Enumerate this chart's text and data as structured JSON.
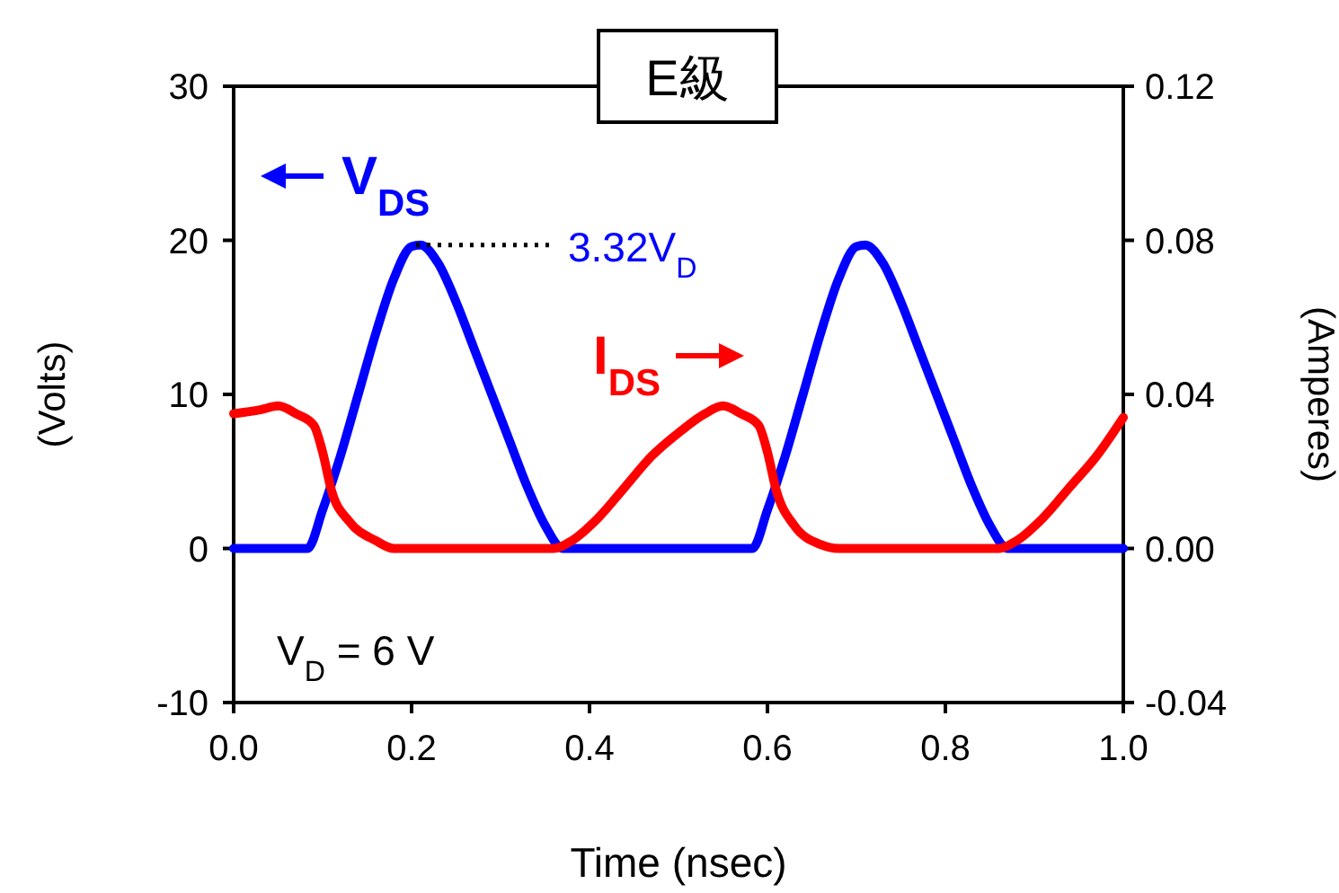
{
  "chart_data": {
    "type": "line",
    "title": "E級",
    "xlabel": "Time (nsec)",
    "ylabel": "(Volts)",
    "y2label": "(Amperes)",
    "xlim": [
      0,
      1
    ],
    "xticks": [
      {
        "value": 0,
        "label": "0.0"
      },
      {
        "value": 0.2,
        "label": "0.2"
      },
      {
        "value": 0.4,
        "label": "0.4"
      },
      {
        "value": 0.6,
        "label": "0.6"
      },
      {
        "value": 0.8,
        "label": "0.8"
      },
      {
        "value": 1,
        "label": "1.0"
      }
    ],
    "ylim": [
      -10,
      30
    ],
    "yticks": [
      -10,
      0,
      10,
      20,
      30
    ],
    "y2lim": [
      -0.04,
      0.12
    ],
    "y2ticks": [
      {
        "value": -0.04,
        "label": "-0.04"
      },
      {
        "value": 0,
        "label": "0.00"
      },
      {
        "value": 0.04,
        "label": "0.04"
      },
      {
        "value": 0.08,
        "label": "0.08"
      },
      {
        "value": 0.12,
        "label": "0.12"
      }
    ],
    "grid": false,
    "legend": "top left",
    "marker": "none",
    "line_style": "solid",
    "annotations": [
      {
        "text": "3.32V$_{D}$",
        "x": 0.205,
        "y": 19.7
      },
      "V$_{D}$ = 6 V"
    ],
    "series": [
      {
        "name": "V$_{DS}$",
        "color": "#0000ff",
        "x": [
          0,
          0.04,
          0.083,
          0.1,
          0.12,
          0.14,
          0.16,
          0.18,
          0.2,
          0.21,
          0.23,
          0.25,
          0.27,
          0.29,
          0.31,
          0.33,
          0.35,
          0.37,
          0.45,
          0.54,
          0.583,
          0.6,
          0.62,
          0.64,
          0.66,
          0.68,
          0.7,
          0.71,
          0.73,
          0.75,
          0.77,
          0.79,
          0.81,
          0.83,
          0.85,
          0.87,
          0.95,
          1.0
        ],
        "values": [
          0,
          0,
          0,
          2.5,
          6,
          10,
          14,
          17.5,
          19.6,
          19.7,
          18.5,
          16,
          13,
          10,
          7,
          4,
          1.5,
          0,
          0,
          0,
          0,
          2.5,
          6,
          10,
          14,
          17.5,
          19.6,
          19.7,
          18.5,
          16,
          13,
          10,
          7,
          4,
          1.5,
          0,
          0,
          0
        ]
      },
      {
        "name": "I$_{DS}$",
        "color": "#ff0000",
        "axis": "y2",
        "x": [
          0,
          0.03,
          0.05,
          0.07,
          0.09,
          0.1,
          0.11,
          0.13,
          0.16,
          0.18,
          0.27,
          0.36,
          0.38,
          0.41,
          0.44,
          0.47,
          0.5,
          0.53,
          0.55,
          0.57,
          0.59,
          0.6,
          0.61,
          0.63,
          0.66,
          0.68,
          0.77,
          0.86,
          0.88,
          0.91,
          0.94,
          0.97,
          1.0
        ],
        "values": [
          0.035,
          0.036,
          0.037,
          0.035,
          0.032,
          0.025,
          0.015,
          0.007,
          0.002,
          0,
          0,
          0,
          0.002,
          0.008,
          0.016,
          0.024,
          0.03,
          0.035,
          0.037,
          0.035,
          0.032,
          0.025,
          0.015,
          0.006,
          0.001,
          0,
          0,
          0,
          0.002,
          0.008,
          0.016,
          0.024,
          0.034
        ]
      }
    ]
  }
}
